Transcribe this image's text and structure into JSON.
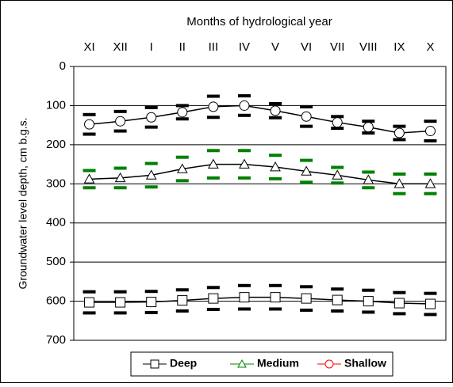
{
  "chart_data": {
    "type": "line",
    "title": "Months of hydrological year",
    "y_label": "Groundwater level depth, cm b.g.s.",
    "categories": [
      "XI",
      "XII",
      "I",
      "II",
      "III",
      "IV",
      "V",
      "VI",
      "VII",
      "VIII",
      "IX",
      "X"
    ],
    "series": [
      {
        "name": "Deep",
        "color": "#000000",
        "marker": "square",
        "values": [
          603,
          603,
          602,
          598,
          593,
          590,
          590,
          593,
          597,
          600,
          605,
          607
        ],
        "errors": [
          27,
          27,
          27,
          27,
          28,
          30,
          30,
          30,
          28,
          28,
          27,
          27
        ]
      },
      {
        "name": "Medium",
        "color": "#008000",
        "marker": "triangle",
        "values": [
          288,
          285,
          278,
          262,
          250,
          250,
          257,
          268,
          278,
          290,
          300,
          300
        ],
        "errors": [
          22,
          25,
          30,
          30,
          35,
          35,
          30,
          28,
          20,
          20,
          25,
          25
        ]
      },
      {
        "name": "Shallow",
        "color": "#ff0000",
        "marker": "circle",
        "values": [
          148,
          140,
          130,
          117,
          103,
          100,
          113,
          128,
          143,
          155,
          170,
          165
        ],
        "errors": [
          25,
          25,
          25,
          17,
          27,
          25,
          18,
          25,
          15,
          15,
          17,
          25
        ]
      }
    ],
    "ylim": [
      0,
      700
    ],
    "yticks": [
      0,
      100,
      200,
      300,
      400,
      500,
      600,
      700
    ],
    "y_inverted": true,
    "x_axis_top": true,
    "grid": true,
    "legend": "bottom"
  }
}
